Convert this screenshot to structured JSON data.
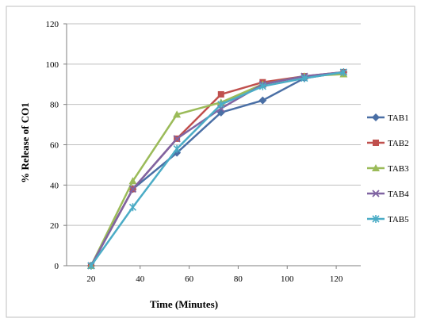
{
  "chart_data": {
    "type": "line",
    "xlabel": "Time (Minutes)",
    "ylabel": "% Release of CO1",
    "x_ticks": [
      "20",
      "40",
      "60",
      "80",
      "100",
      "120"
    ],
    "y_ticks": [
      "0",
      "20",
      "40",
      "60",
      "80",
      "100",
      "120"
    ],
    "ylim": [
      0,
      120
    ],
    "xlim": [
      10,
      130
    ],
    "grid": "horizontal",
    "legend_position": "right",
    "x": [
      20,
      37,
      55,
      73,
      90,
      107,
      123
    ],
    "series": [
      {
        "name": "TAB1",
        "color": "#4a6fa5",
        "marker": "diamond",
        "values": [
          0,
          38,
          56,
          76,
          82,
          93,
          96
        ]
      },
      {
        "name": "TAB2",
        "color": "#c0504d",
        "marker": "square",
        "values": [
          0,
          38,
          63,
          85,
          91,
          94,
          96
        ]
      },
      {
        "name": "TAB3",
        "color": "#9bbb59",
        "marker": "triangle",
        "values": [
          0,
          42,
          75,
          81,
          90,
          94,
          95
        ]
      },
      {
        "name": "TAB4",
        "color": "#8064a2",
        "marker": "x",
        "values": [
          0,
          38,
          63,
          78,
          90,
          94,
          96
        ]
      },
      {
        "name": "TAB5",
        "color": "#4bacc6",
        "marker": "star",
        "values": [
          0,
          29,
          58,
          80,
          89,
          93,
          96
        ]
      }
    ]
  }
}
